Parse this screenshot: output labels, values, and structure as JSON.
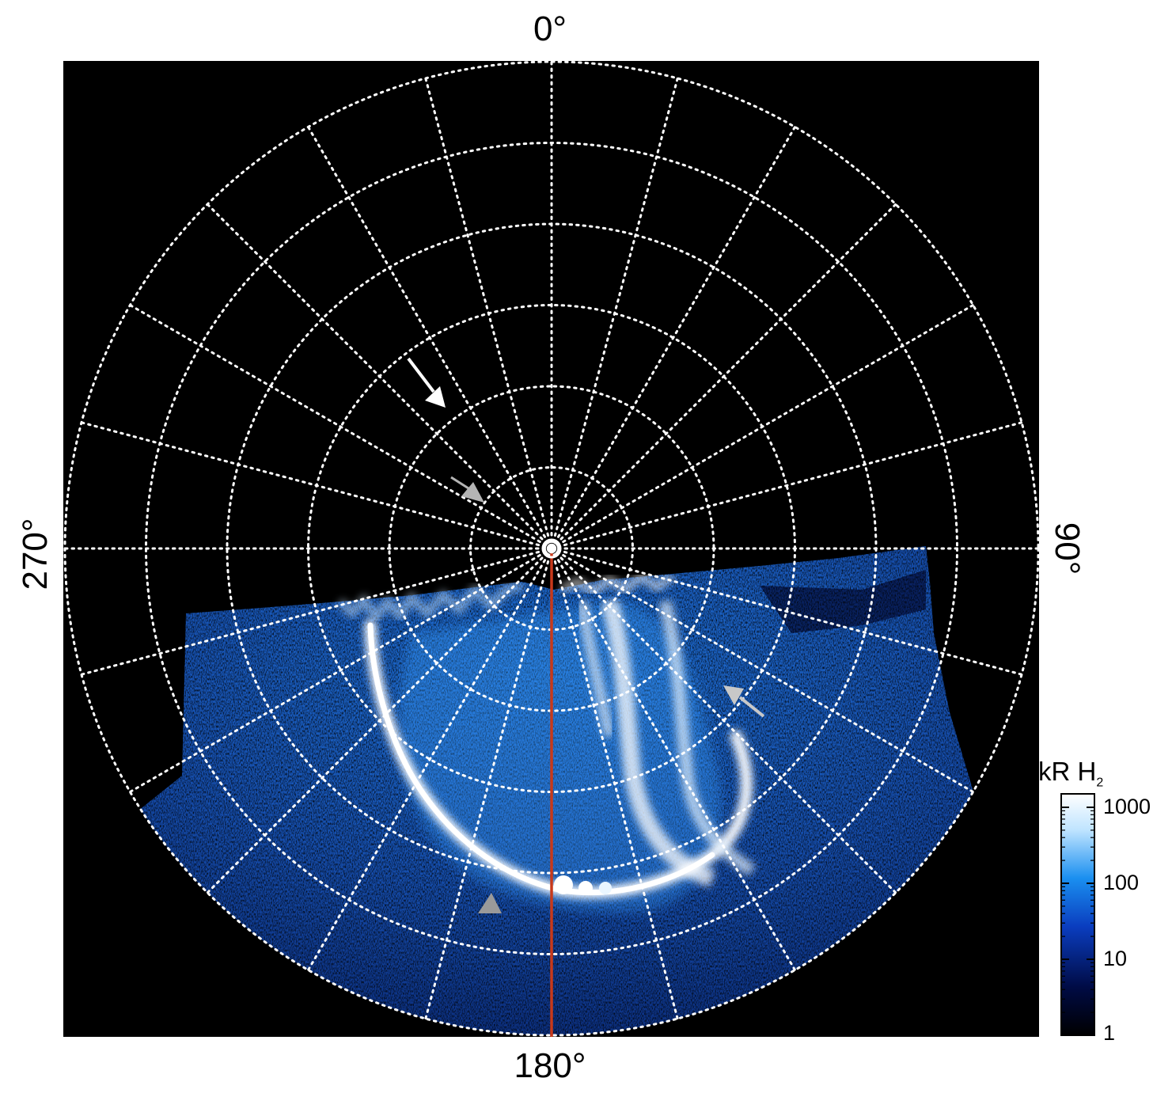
{
  "figure": {
    "axis_labels": {
      "top": "0°",
      "right": "90°",
      "bottom": "180°",
      "left": "270°"
    },
    "colorbar": {
      "title": "kR H",
      "title_subscript": "2",
      "scale": "log",
      "ticks": [
        "1",
        "10",
        "100",
        "1000"
      ],
      "colors": [
        "#000000",
        "#000b45",
        "#0a3dbf",
        "#1a8ff0",
        "#bfe4ff",
        "#ffffff"
      ]
    },
    "grid": {
      "style": "dotted",
      "color": "#ffffff",
      "meridian_count": 24,
      "latitude_circle_count": 6
    },
    "colors": {
      "background": "#000000",
      "central_meridian_line": "#c8391a",
      "arrow_white": "#ffffff",
      "arrow_gray": "#b4b4b4"
    },
    "annotations": [
      {
        "name": "white-arrow",
        "color": "white"
      },
      {
        "name": "gray-arrow-center",
        "color": "gray"
      },
      {
        "name": "gray-arrow-right",
        "color": "gray"
      },
      {
        "name": "gray-arrowhead-bottom",
        "color": "gray"
      }
    ]
  }
}
